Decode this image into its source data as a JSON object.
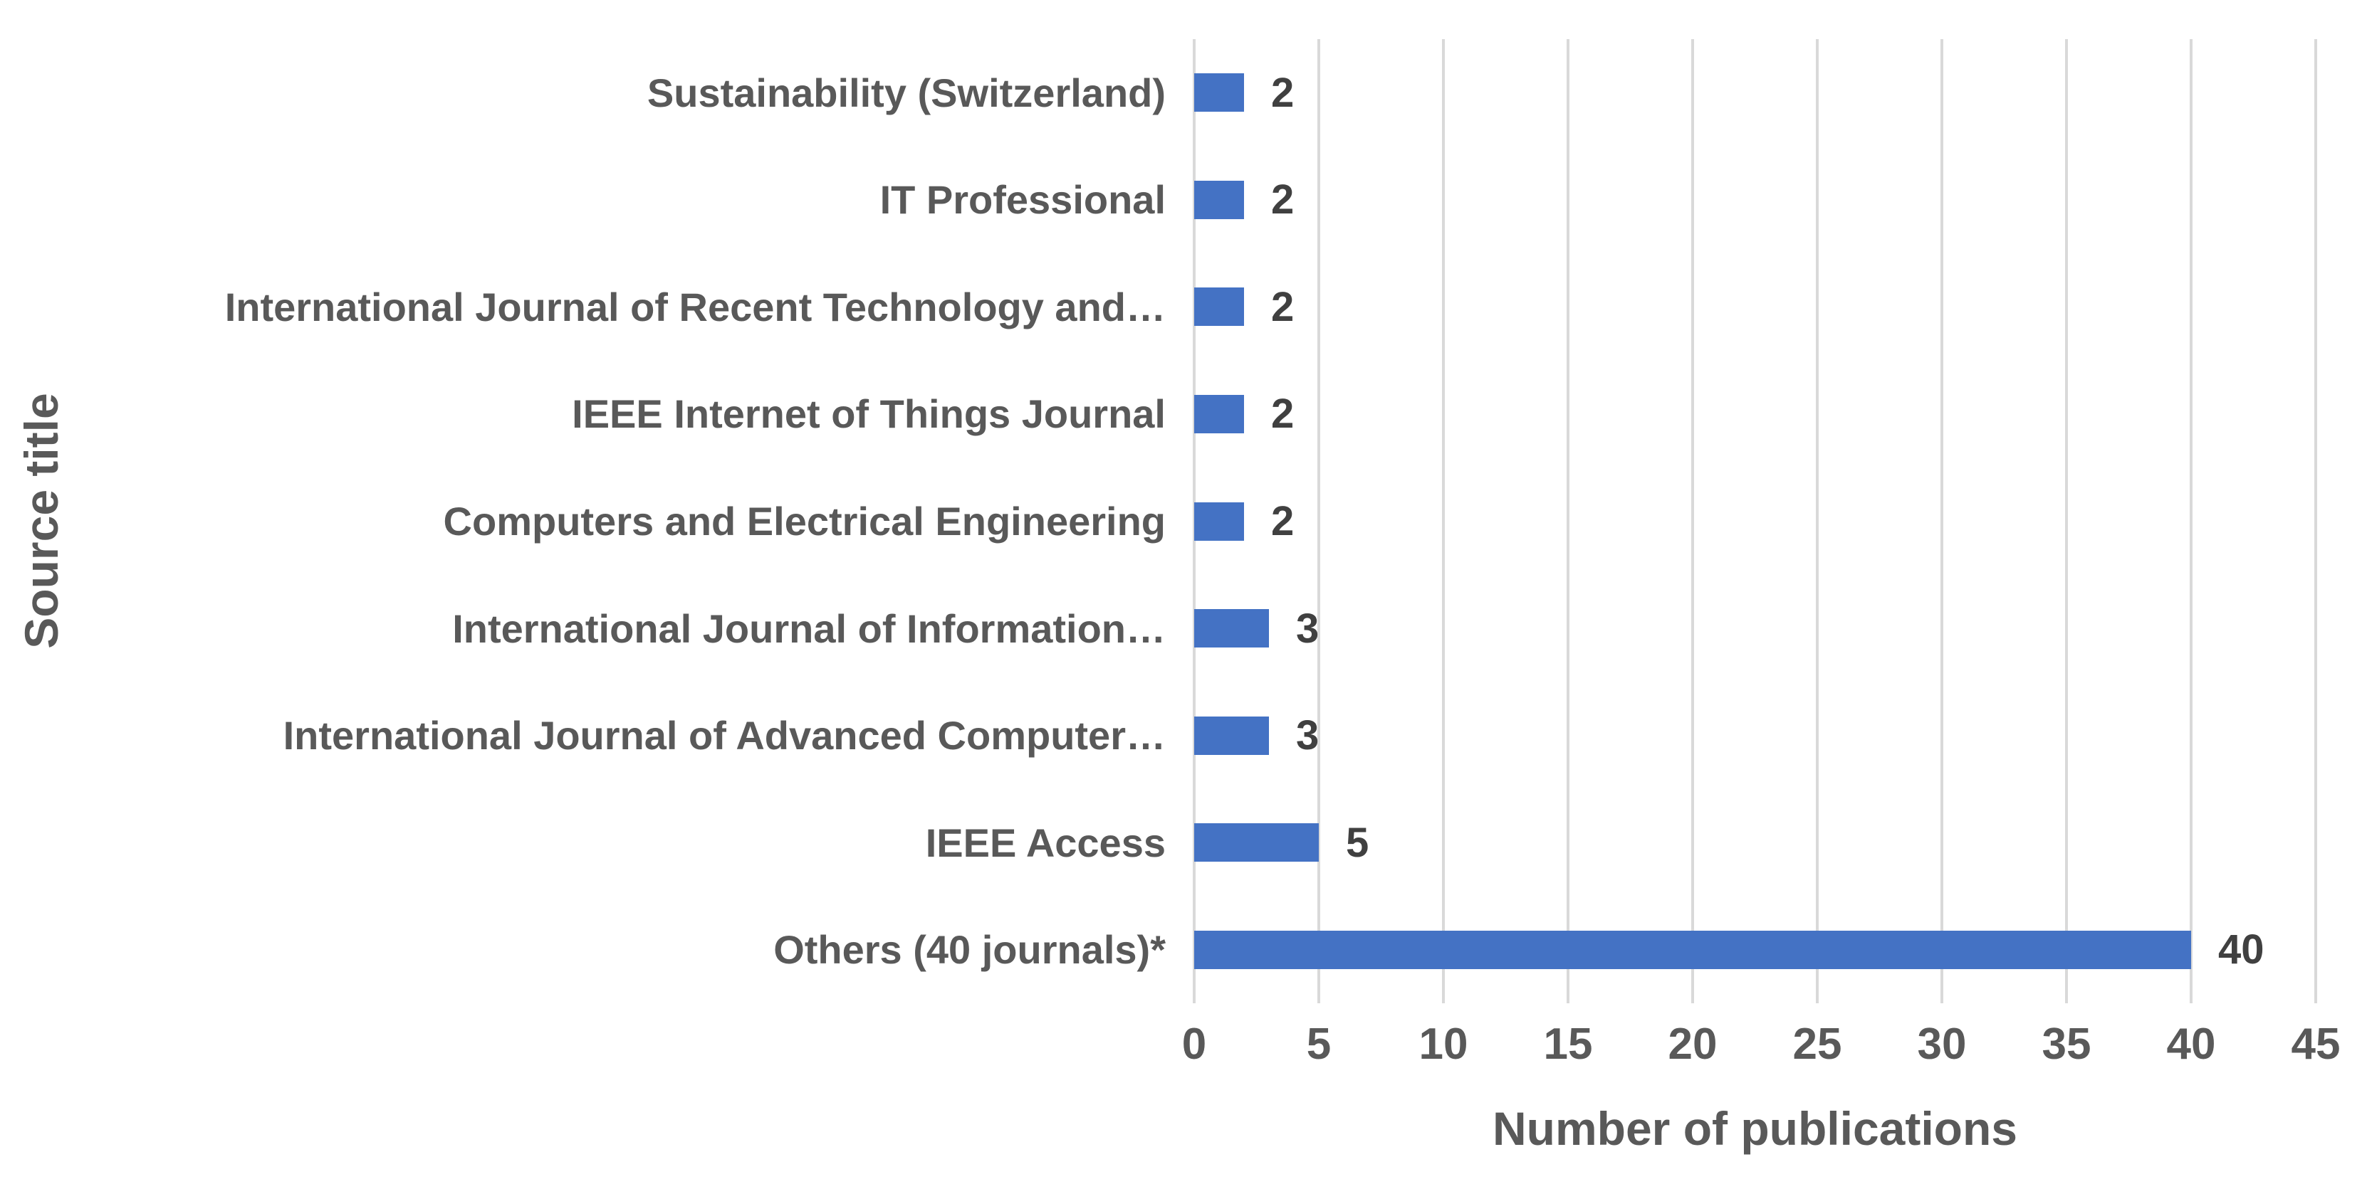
{
  "chart_data": {
    "type": "bar",
    "orientation": "horizontal",
    "title": "",
    "xlabel": "Number of publications",
    "ylabel": "Source title",
    "categories": [
      "Sustainability (Switzerland)",
      "IT Professional",
      "International Journal of Recent Technology and…",
      "IEEE Internet of Things Journal",
      "Computers and Electrical Engineering",
      "International Journal of Information…",
      "International Journal of Advanced Computer…",
      "IEEE Access",
      "Others (40 journals)*"
    ],
    "values": [
      2,
      2,
      2,
      2,
      2,
      3,
      3,
      5,
      40
    ],
    "data_labels": [
      "2",
      "2",
      "2",
      "2",
      "2",
      "3",
      "3",
      "5",
      "40"
    ],
    "xlim": [
      0,
      45
    ],
    "xticks": [
      0,
      5,
      10,
      15,
      20,
      25,
      30,
      35,
      40,
      45
    ],
    "grid": "vertical",
    "legend": "none",
    "colors": {
      "bar": "#4472C4",
      "gridline": "#D9D9D9",
      "axis_text": "#595959",
      "data_label_text": "#404040"
    }
  }
}
